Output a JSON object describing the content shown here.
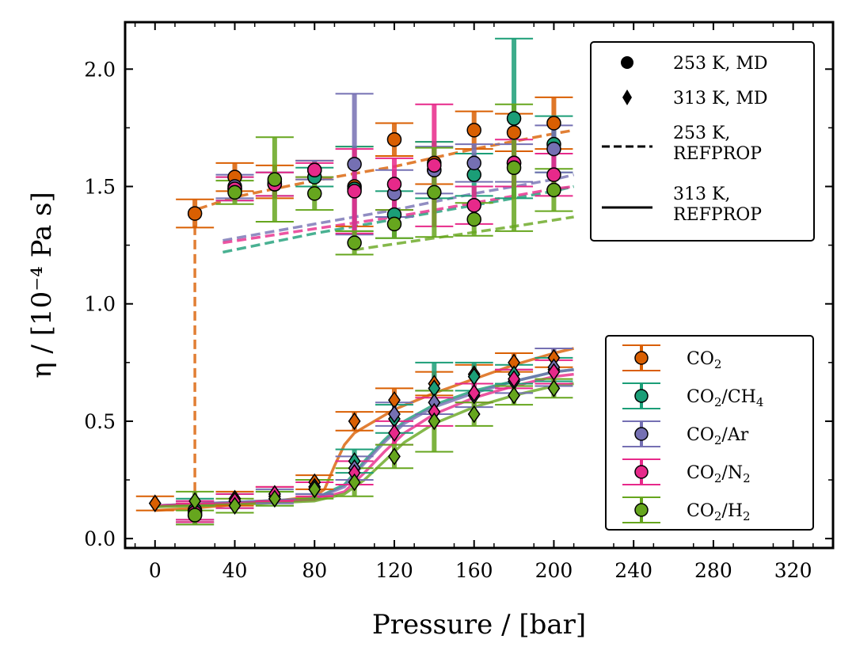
{
  "chart_data": {
    "type": "scatter",
    "xlabel": "Pressure / [bar]",
    "ylabel": "η / [10⁻⁴ Pa s]",
    "xlim": [
      -15,
      340
    ],
    "ylim": [
      -0.04,
      2.2
    ],
    "xticks": [
      0,
      40,
      80,
      120,
      160,
      200,
      240,
      280,
      320
    ],
    "yticks": [
      0.0,
      0.5,
      1.0,
      1.5,
      2.0
    ],
    "x_tick_labels": [
      "0",
      "40",
      "80",
      "120",
      "160",
      "200",
      "240",
      "280",
      "320"
    ],
    "y_tick_labels": [
      "0.0",
      "0.5",
      "1.0",
      "1.5",
      "2.0"
    ],
    "marker_legend": {
      "location": "upper right",
      "entries": [
        {
          "label": "253 K, MD",
          "style": "circle"
        },
        {
          "label": "313 K, MD",
          "style": "diamond"
        },
        {
          "label_lines": [
            "253 K,",
            "REFPROP"
          ],
          "style": "dashed"
        },
        {
          "label_lines": [
            "313 K,",
            "REFPROP"
          ],
          "style": "solid"
        }
      ]
    },
    "series_legend": {
      "location": "lower right",
      "entries": [
        {
          "base": "CO",
          "sub": "2",
          "rest": "",
          "rest_sub": ""
        },
        {
          "base": "CO",
          "sub": "2",
          "rest": "/CH",
          "rest_sub": "4"
        },
        {
          "base": "CO",
          "sub": "2",
          "rest": "/Ar",
          "rest_sub": ""
        },
        {
          "base": "CO",
          "sub": "2",
          "rest": "/N",
          "rest_sub": "2"
        },
        {
          "base": "CO",
          "sub": "2",
          "rest": "/H",
          "rest_sub": "2"
        }
      ]
    },
    "series": [
      {
        "name": "CO2",
        "color": "#d95f02",
        "offset": 0,
        "md_253": {
          "x": [
            20,
            40,
            60,
            80,
            100,
            120,
            140,
            160,
            180,
            200
          ],
          "y": [
            1.385,
            1.54,
            1.52,
            1.57,
            1.5,
            1.7,
            1.6,
            1.74,
            1.73,
            1.77
          ],
          "err": [
            0.06,
            0.06,
            0.07,
            0.04,
            0.17,
            0.07,
            0.09,
            0.08,
            0.08,
            0.11
          ]
        },
        "md_313": {
          "x": [
            0,
            20,
            40,
            60,
            80,
            100,
            120,
            140,
            160,
            180,
            200
          ],
          "y": [
            0.15,
            0.11,
            0.17,
            0.19,
            0.24,
            0.5,
            0.59,
            0.66,
            0.7,
            0.75,
            0.77
          ],
          "err": [
            0.03,
            0.04,
            0.03,
            0.03,
            0.03,
            0.04,
            0.05,
            0.05,
            0.04,
            0.04,
            0.04
          ]
        },
        "ref_253": {
          "x": [
            20,
            20,
            40,
            80,
            120,
            160,
            200,
            210
          ],
          "y": [
            0.2,
            1.4,
            1.455,
            1.525,
            1.585,
            1.66,
            1.725,
            1.74
          ]
        },
        "ref_313": {
          "x": [
            0,
            20,
            40,
            60,
            80,
            85,
            90,
            95,
            100,
            110,
            120,
            140,
            160,
            180,
            200,
            210
          ],
          "y": [
            0.12,
            0.13,
            0.145,
            0.16,
            0.18,
            0.21,
            0.31,
            0.4,
            0.45,
            0.5,
            0.55,
            0.62,
            0.68,
            0.74,
            0.79,
            0.81
          ]
        }
      },
      {
        "name": "CO2/CH4",
        "color": "#1b9e77",
        "offset": 1,
        "md_253": {
          "x": [
            20,
            40,
            60,
            80,
            100,
            120,
            140,
            160,
            180,
            200
          ],
          "y": [
            0.12,
            1.49,
            1.51,
            1.54,
            1.49,
            1.38,
            1.57,
            1.55,
            1.79,
            1.68
          ],
          "err": [
            0.04,
            0.05,
            0.05,
            0.04,
            0.18,
            0.1,
            0.12,
            0.09,
            0.34,
            0.12
          ]
        },
        "md_313": {
          "x": [
            20,
            40,
            60,
            80,
            100,
            120,
            140,
            160,
            180,
            200
          ],
          "y": [
            0.12,
            0.16,
            0.17,
            0.22,
            0.33,
            0.51,
            0.64,
            0.69,
            0.7,
            0.72
          ],
          "err": [
            0.05,
            0.03,
            0.03,
            0.03,
            0.05,
            0.06,
            0.11,
            0.06,
            0.04,
            0.05
          ]
        },
        "ref_253": {
          "x": [
            34,
            80,
            120,
            160,
            200,
            210
          ],
          "y": [
            1.22,
            1.3,
            1.36,
            1.42,
            1.48,
            1.5
          ]
        },
        "ref_313": {
          "x": [
            0,
            40,
            80,
            95,
            105,
            115,
            125,
            140,
            160,
            180,
            200,
            210
          ],
          "y": [
            0.14,
            0.155,
            0.17,
            0.23,
            0.33,
            0.42,
            0.5,
            0.57,
            0.63,
            0.67,
            0.71,
            0.72
          ]
        }
      },
      {
        "name": "CO2/Ar",
        "color": "#7570b3",
        "offset": 2,
        "md_253": {
          "x": [
            20,
            40,
            60,
            80,
            100,
            120,
            140,
            160,
            180,
            200
          ],
          "y": [
            0.1,
            1.5,
            1.51,
            1.57,
            1.595,
            1.47,
            1.57,
            1.6,
            1.6,
            1.66
          ],
          "err": [
            0.04,
            0.05,
            0.05,
            0.04,
            0.3,
            0.1,
            0.1,
            0.08,
            0.08,
            0.1
          ]
        },
        "md_313": {
          "x": [
            20,
            40,
            60,
            80,
            100,
            120,
            140,
            160,
            180,
            200
          ],
          "y": [
            0.12,
            0.16,
            0.18,
            0.22,
            0.3,
            0.53,
            0.58,
            0.61,
            0.67,
            0.73
          ],
          "err": [
            0.04,
            0.03,
            0.03,
            0.03,
            0.05,
            0.05,
            0.05,
            0.05,
            0.05,
            0.08
          ]
        },
        "ref_253": {
          "x": [
            34,
            80,
            120,
            160,
            200,
            210
          ],
          "y": [
            1.27,
            1.34,
            1.4,
            1.47,
            1.53,
            1.55
          ]
        },
        "ref_313": {
          "x": [
            0,
            40,
            80,
            95,
            105,
            115,
            125,
            140,
            160,
            180,
            200,
            210
          ],
          "y": [
            0.14,
            0.155,
            0.17,
            0.22,
            0.32,
            0.41,
            0.49,
            0.56,
            0.62,
            0.67,
            0.71,
            0.72
          ]
        }
      },
      {
        "name": "CO2/N2",
        "color": "#e7298a",
        "offset": 3,
        "md_253": {
          "x": [
            20,
            40,
            60,
            80,
            100,
            120,
            140,
            160,
            180,
            200
          ],
          "y": [
            0.11,
            1.49,
            1.51,
            1.57,
            1.48,
            1.51,
            1.59,
            1.42,
            1.6,
            1.55
          ],
          "err": [
            0.04,
            0.05,
            0.05,
            0.03,
            0.18,
            0.11,
            0.26,
            0.08,
            0.1,
            0.09
          ]
        },
        "md_313": {
          "x": [
            20,
            40,
            60,
            80,
            100,
            120,
            140,
            160,
            180,
            200
          ],
          "y": [
            0.12,
            0.16,
            0.19,
            0.21,
            0.28,
            0.45,
            0.54,
            0.62,
            0.68,
            0.71
          ],
          "err": [
            0.04,
            0.03,
            0.03,
            0.03,
            0.05,
            0.05,
            0.06,
            0.04,
            0.04,
            0.05
          ]
        },
        "ref_253": {
          "x": [
            34,
            80,
            120,
            160,
            200,
            210
          ],
          "y": [
            1.26,
            1.32,
            1.37,
            1.43,
            1.49,
            1.5
          ]
        },
        "ref_313": {
          "x": [
            0,
            40,
            80,
            95,
            105,
            115,
            125,
            140,
            160,
            180,
            200,
            210
          ],
          "y": [
            0.14,
            0.15,
            0.165,
            0.2,
            0.28,
            0.37,
            0.45,
            0.53,
            0.6,
            0.65,
            0.69,
            0.7
          ]
        }
      },
      {
        "name": "CO2/H2",
        "color": "#66a61e",
        "offset": 4,
        "md_253": {
          "x": [
            20,
            40,
            60,
            80,
            100,
            120,
            140,
            160,
            180,
            200
          ],
          "y": [
            0.1,
            1.475,
            1.53,
            1.47,
            1.26,
            1.34,
            1.475,
            1.36,
            1.58,
            1.485
          ],
          "err": [
            0.04,
            0.05,
            0.18,
            0.07,
            0.05,
            0.06,
            0.19,
            0.07,
            0.27,
            0.09
          ]
        },
        "md_313": {
          "x": [
            20,
            40,
            60,
            80,
            100,
            120,
            140,
            160,
            180,
            200
          ],
          "y": [
            0.16,
            0.14,
            0.17,
            0.21,
            0.24,
            0.35,
            0.5,
            0.53,
            0.61,
            0.64
          ],
          "err": [
            0.04,
            0.03,
            0.03,
            0.04,
            0.06,
            0.05,
            0.13,
            0.05,
            0.04,
            0.04
          ]
        },
        "ref_253": {
          "x": [
            100,
            140,
            180,
            210
          ],
          "y": [
            1.23,
            1.28,
            1.33,
            1.37
          ]
        },
        "ref_313": {
          "x": [
            0,
            40,
            80,
            95,
            105,
            115,
            125,
            140,
            160,
            180,
            200,
            210
          ],
          "y": [
            0.135,
            0.145,
            0.16,
            0.19,
            0.25,
            0.33,
            0.41,
            0.49,
            0.56,
            0.61,
            0.65,
            0.66
          ]
        }
      }
    ]
  }
}
